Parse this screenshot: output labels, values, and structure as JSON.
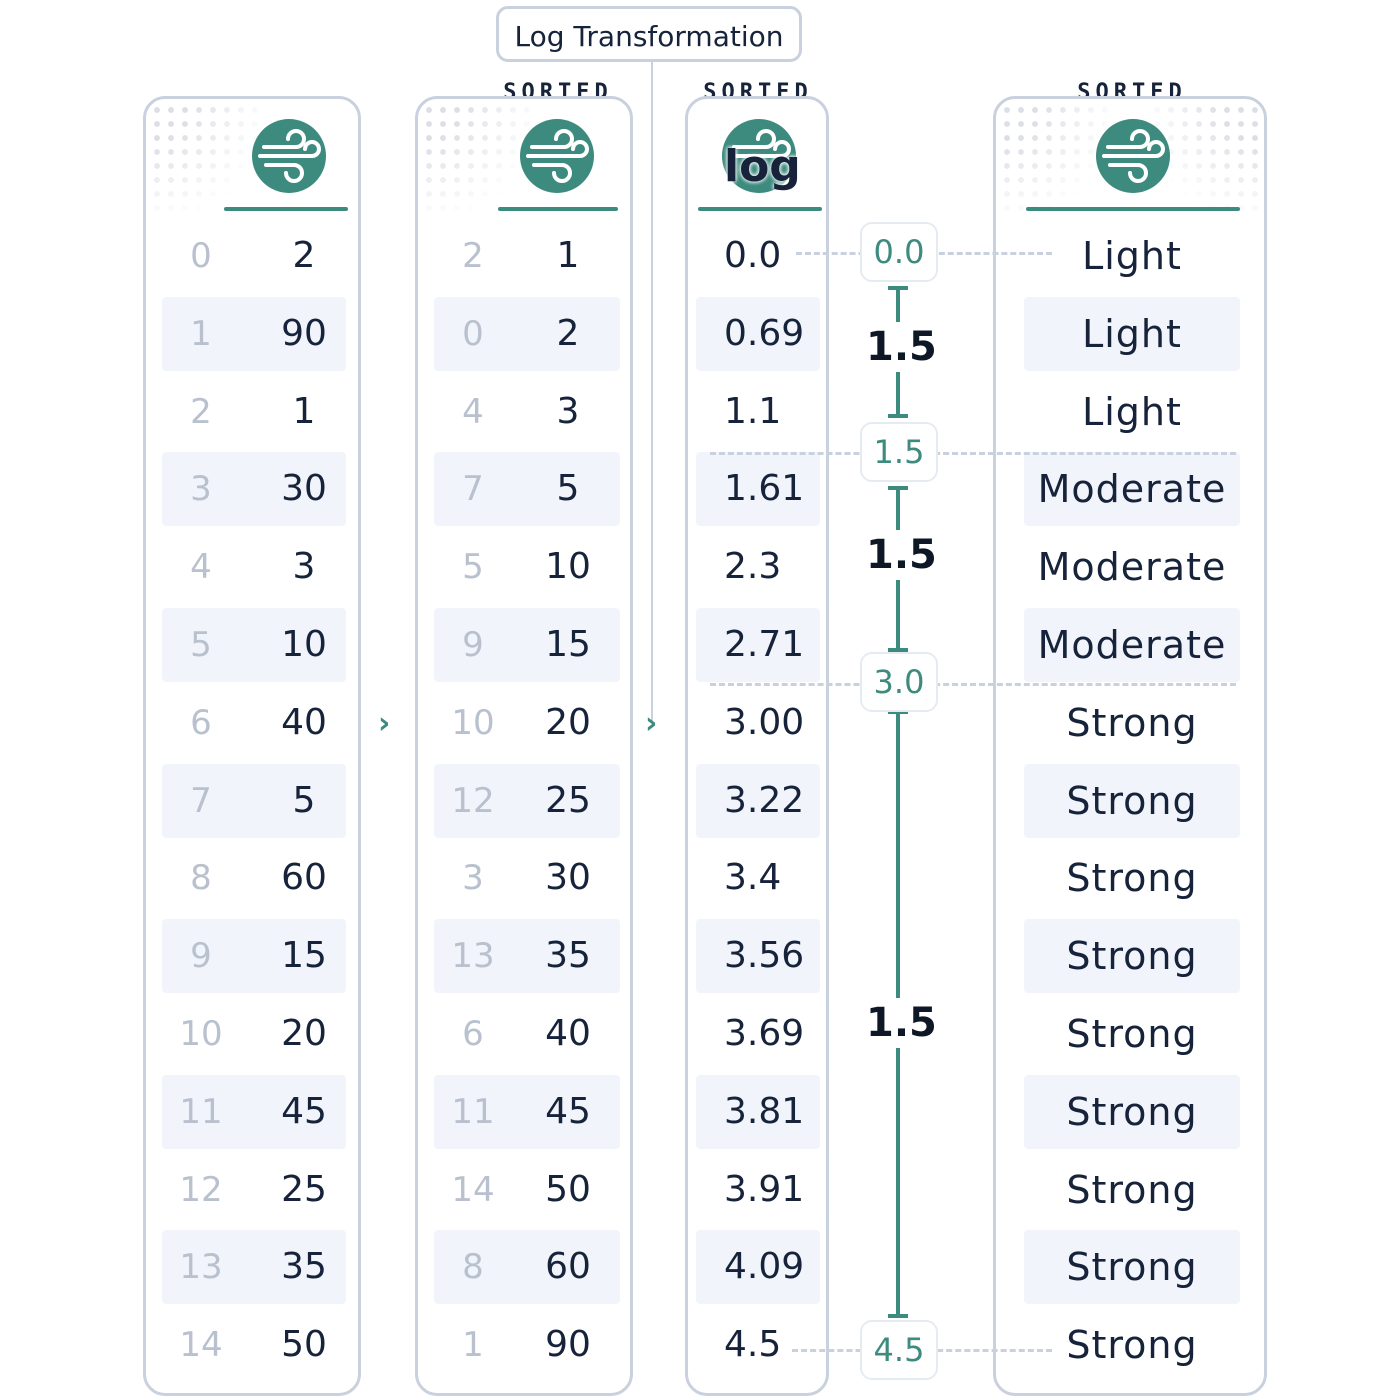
{
  "title": "Log Transformation",
  "sorted_label": "SORTED",
  "log_label": "log",
  "icon": "wind-icon",
  "colors": {
    "accent": "#3d8b7f",
    "border": "#c9d0de",
    "row_shade": "#f1f5fb",
    "index_text": "#b9c1cf"
  },
  "original": {
    "indices": [
      "0",
      "1",
      "2",
      "3",
      "4",
      "5",
      "6",
      "7",
      "8",
      "9",
      "10",
      "11",
      "12",
      "13",
      "14"
    ],
    "values": [
      "2",
      "90",
      "1",
      "30",
      "3",
      "10",
      "40",
      "5",
      "60",
      "15",
      "20",
      "45",
      "25",
      "35",
      "50"
    ]
  },
  "sorted": {
    "indices": [
      "2",
      "0",
      "4",
      "7",
      "5",
      "9",
      "10",
      "12",
      "3",
      "13",
      "6",
      "11",
      "14",
      "8",
      "1"
    ],
    "values": [
      "1",
      "2",
      "3",
      "5",
      "10",
      "15",
      "20",
      "25",
      "30",
      "35",
      "40",
      "45",
      "50",
      "60",
      "90"
    ]
  },
  "log_values": [
    "0.0",
    "0.69",
    "1.1",
    "1.61",
    "2.3",
    "2.71",
    "3.00",
    "3.22",
    "3.4",
    "3.56",
    "3.69",
    "3.81",
    "3.91",
    "4.09",
    "4.5"
  ],
  "bins": {
    "edges": [
      "0.0",
      "1.5",
      "3.0",
      "4.5"
    ],
    "widths": [
      "1.5",
      "1.5",
      "1.5"
    ]
  },
  "categories": [
    "Light",
    "Light",
    "Light",
    "Moderate",
    "Moderate",
    "Moderate",
    "Strong",
    "Strong",
    "Strong",
    "Strong",
    "Strong",
    "Strong",
    "Strong",
    "Strong",
    "Strong"
  ]
}
